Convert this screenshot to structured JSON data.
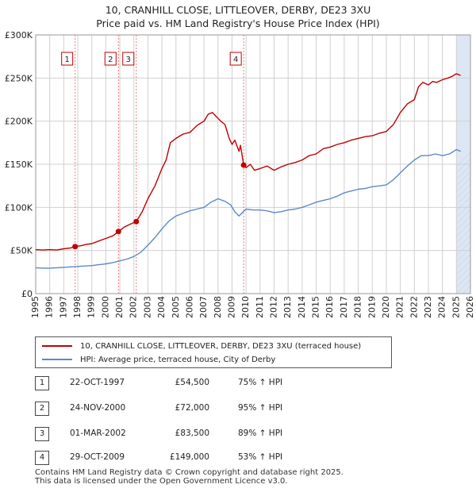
{
  "header": {
    "line1": "10, CRANHILL CLOSE, LITTLEOVER, DERBY, DE23 3XU",
    "line2": "Price paid vs. HM Land Registry's House Price Index (HPI)"
  },
  "colors": {
    "property": "#c00000",
    "hpi": "#5b8ac8",
    "shade": "#dde6f3",
    "marker_line": "#ee7777"
  },
  "chart_data": {
    "type": "line",
    "title": "Price paid vs. HM Land Registry's House Price Index (HPI)",
    "xlabel": "",
    "ylabel": "",
    "xlim": [
      1995,
      2026
    ],
    "ylim": [
      0,
      300000
    ],
    "y_ticks": [
      {
        "value": 0,
        "label": "£0"
      },
      {
        "value": 50000,
        "label": "£50K"
      },
      {
        "value": 100000,
        "label": "£100K"
      },
      {
        "value": 150000,
        "label": "£150K"
      },
      {
        "value": 200000,
        "label": "£200K"
      },
      {
        "value": 250000,
        "label": "£250K"
      },
      {
        "value": 300000,
        "label": "£300K"
      }
    ],
    "x_ticks": [
      "1995",
      "1996",
      "1997",
      "1998",
      "1999",
      "2000",
      "2001",
      "2002",
      "2003",
      "2004",
      "2005",
      "2006",
      "2007",
      "2008",
      "2009",
      "2010",
      "2011",
      "2012",
      "2013",
      "2014",
      "2015",
      "2016",
      "2017",
      "2018",
      "2019",
      "2020",
      "2021",
      "2022",
      "2023",
      "2024",
      "2025",
      "2026"
    ],
    "forecast_from": 2025.0,
    "series": [
      {
        "name": "10, CRANHILL CLOSE, LITTLEOVER, DERBY, DE23 3XU (terraced house)",
        "color": "#c00000",
        "x": [
          1995.0,
          1995.5,
          1996.0,
          1996.5,
          1997.0,
          1997.5,
          1997.81,
          1998.2,
          1998.6,
          1999.0,
          1999.5,
          2000.0,
          2000.5,
          2000.9,
          2001.3,
          2001.8,
          2002.17,
          2002.6,
          2003.0,
          2003.5,
          2004.0,
          2004.3,
          2004.6,
          2005.0,
          2005.5,
          2006.0,
          2006.5,
          2007.0,
          2007.3,
          2007.6,
          2007.9,
          2008.2,
          2008.5,
          2008.8,
          2009.0,
          2009.2,
          2009.5,
          2009.6,
          2009.83,
          2010.0,
          2010.3,
          2010.6,
          2011.0,
          2011.5,
          2012.0,
          2012.5,
          2013.0,
          2013.5,
          2014.0,
          2014.5,
          2015.0,
          2015.5,
          2016.0,
          2016.5,
          2017.0,
          2017.5,
          2018.0,
          2018.5,
          2019.0,
          2019.5,
          2020.0,
          2020.5,
          2021.0,
          2021.5,
          2022.0,
          2022.3,
          2022.6,
          2023.0,
          2023.3,
          2023.6,
          2024.0,
          2024.4,
          2024.7,
          2025.0,
          2025.3
        ],
        "values": [
          51000,
          50500,
          51000,
          50500,
          52000,
          53000,
          54500,
          55500,
          57000,
          58000,
          61000,
          64000,
          67000,
          72000,
          77000,
          81000,
          83500,
          95000,
          110000,
          125000,
          145000,
          155000,
          175000,
          180000,
          185000,
          187000,
          195000,
          200000,
          208000,
          210000,
          205000,
          200000,
          196000,
          180000,
          173000,
          178000,
          165000,
          172000,
          149000,
          146000,
          150000,
          143000,
          145000,
          148000,
          143000,
          147000,
          150000,
          152000,
          155000,
          160000,
          162000,
          168000,
          170000,
          173000,
          175000,
          178000,
          180000,
          182000,
          183000,
          186000,
          188000,
          196000,
          210000,
          220000,
          225000,
          240000,
          245000,
          242000,
          246000,
          245000,
          248000,
          250000,
          252000,
          255000,
          253000
        ]
      },
      {
        "name": "HPI: Average price, terraced house, City of Derby",
        "color": "#5b8ac8",
        "x": [
          1995.0,
          1995.5,
          1996.0,
          1996.5,
          1997.0,
          1997.5,
          1998.0,
          1998.5,
          1999.0,
          1999.5,
          2000.0,
          2000.5,
          2001.0,
          2001.5,
          2002.0,
          2002.5,
          2003.0,
          2003.5,
          2004.0,
          2004.5,
          2005.0,
          2005.5,
          2006.0,
          2006.5,
          2007.0,
          2007.5,
          2008.0,
          2008.5,
          2008.9,
          2009.2,
          2009.5,
          2009.8,
          2010.0,
          2010.5,
          2011.0,
          2011.5,
          2012.0,
          2012.5,
          2013.0,
          2013.5,
          2014.0,
          2014.5,
          2015.0,
          2015.5,
          2016.0,
          2016.5,
          2017.0,
          2017.5,
          2018.0,
          2018.5,
          2019.0,
          2019.5,
          2020.0,
          2020.5,
          2021.0,
          2021.5,
          2022.0,
          2022.5,
          2023.0,
          2023.5,
          2024.0,
          2024.5,
          2025.0,
          2025.3
        ],
        "values": [
          30000,
          29500,
          29500,
          30000,
          30500,
          31000,
          31500,
          32000,
          32500,
          33500,
          34500,
          36000,
          38000,
          40000,
          43000,
          48000,
          56000,
          65000,
          75000,
          84000,
          90000,
          93000,
          96000,
          98000,
          100000,
          106000,
          110000,
          107000,
          103000,
          95000,
          90000,
          95000,
          98000,
          97000,
          97000,
          96000,
          94000,
          95000,
          97000,
          98000,
          100000,
          103000,
          106000,
          108000,
          110000,
          113000,
          117000,
          119000,
          121000,
          122000,
          124000,
          125000,
          126000,
          132000,
          140000,
          148000,
          155000,
          160000,
          160000,
          162000,
          160000,
          162000,
          167000,
          165000
        ]
      }
    ],
    "sales": [
      {
        "label": "1",
        "x": 1997.81,
        "price": 54500,
        "date": "22-OCT-1997",
        "price_text": "£54,500",
        "hpi_text": "75% ↑ HPI"
      },
      {
        "label": "2",
        "x": 2000.9,
        "price": 72000,
        "date": "24-NOV-2000",
        "price_text": "£72,000",
        "hpi_text": "95% ↑ HPI"
      },
      {
        "label": "3",
        "x": 2002.17,
        "price": 83500,
        "date": "01-MAR-2002",
        "price_text": "£83,500",
        "hpi_text": "89% ↑ HPI"
      },
      {
        "label": "4",
        "x": 2009.83,
        "price": 149000,
        "date": "29-OCT-2009",
        "price_text": "£149,000",
        "hpi_text": "53% ↑ HPI"
      }
    ]
  },
  "legend": {
    "property": "10, CRANHILL CLOSE, LITTLEOVER, DERBY, DE23 3XU (terraced house)",
    "hpi": "HPI: Average price, terraced house, City of Derby"
  },
  "footer": {
    "line1": "Contains HM Land Registry data © Crown copyright and database right 2025.",
    "line2": "This data is licensed under the Open Government Licence v3.0."
  }
}
